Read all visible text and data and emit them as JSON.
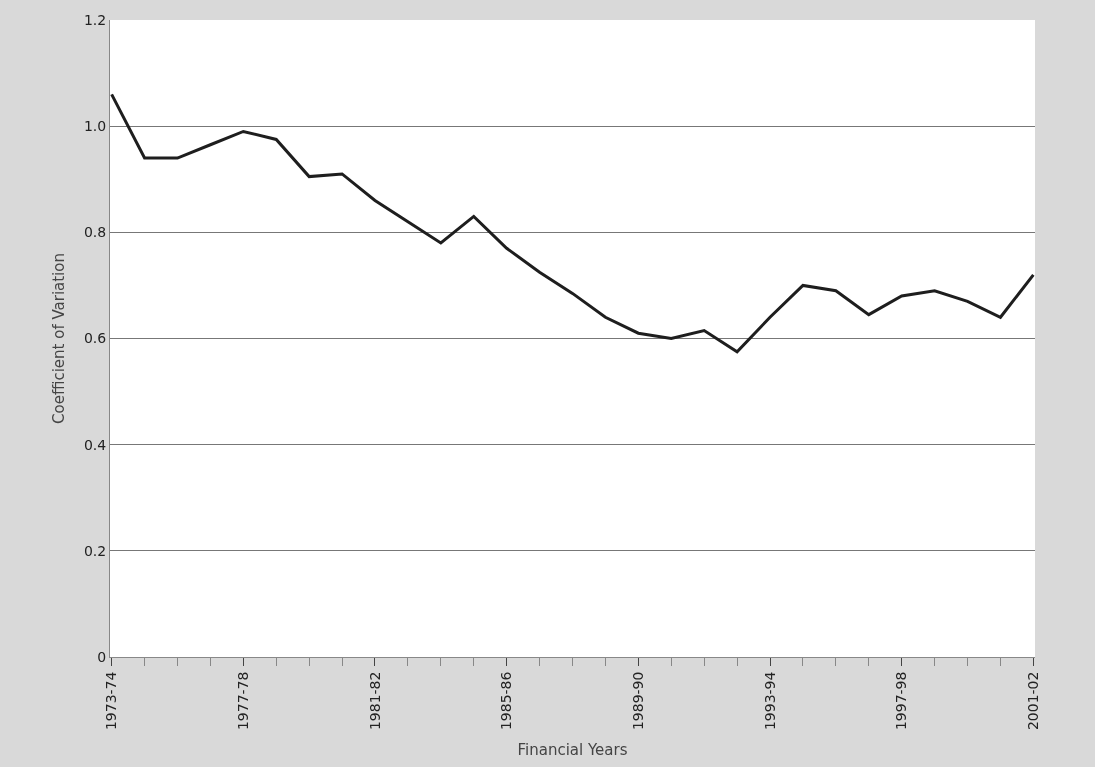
{
  "chart_data": {
    "type": "line",
    "xlabel": "Financial Years",
    "ylabel": "Coefficient of Variation",
    "categories": [
      "1973-74",
      null,
      null,
      null,
      "1977-78",
      null,
      null,
      null,
      "1981-82",
      null,
      null,
      null,
      "1985-86",
      null,
      null,
      null,
      "1989-90",
      null,
      null,
      null,
      "1993-94",
      null,
      null,
      null,
      "1997-98",
      null,
      null,
      null,
      "2001-02"
    ],
    "series": [
      {
        "color": "#1e1e1e",
        "values": [
          1.06,
          0.94,
          0.94,
          0.965,
          0.99,
          0.975,
          0.905,
          0.91,
          0.86,
          0.82,
          0.78,
          0.83,
          0.77,
          0.725,
          0.685,
          0.64,
          0.61,
          0.6,
          0.615,
          0.575,
          0.64,
          0.7,
          0.69,
          0.645,
          0.68,
          0.69,
          0.67,
          0.64,
          0.72
        ]
      }
    ],
    "ylim": [
      0,
      1.2
    ],
    "yticks": [
      0,
      0.2,
      0.4,
      0.6,
      0.8,
      {
        "value": 1,
        "label": "1.0"
      },
      1.2
    ],
    "grid": "y",
    "marker": "none",
    "line_style": "solid"
  }
}
